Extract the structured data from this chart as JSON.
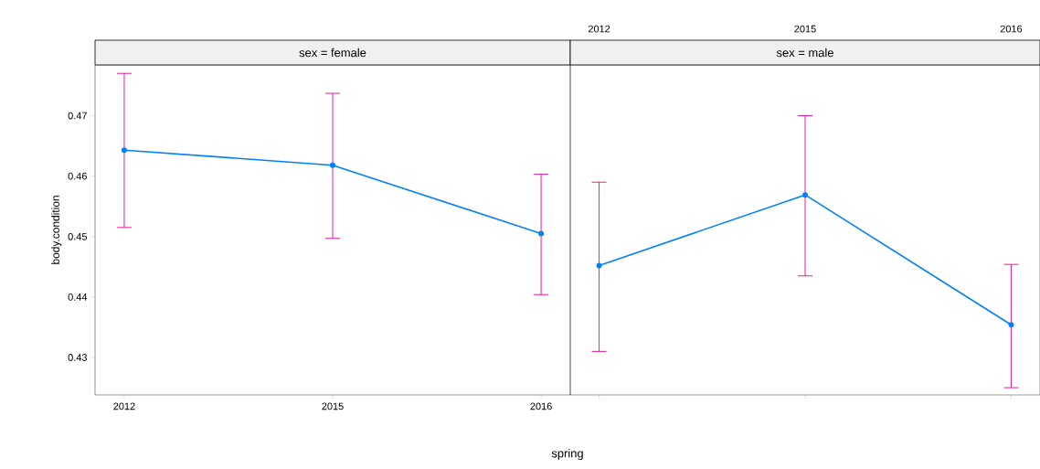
{
  "chart_data": [
    {
      "type": "line",
      "title": "sex = female",
      "xlabel": "spring",
      "ylabel": "body.condition",
      "categories": [
        "2012",
        "2015",
        "2016"
      ],
      "series": [
        {
          "color": "#0080ff",
          "values": [
            0.4643,
            0.4618,
            0.4505
          ],
          "errors": [
            [
              0.4515,
              0.477
            ],
            [
              0.4497,
              0.4737
            ],
            [
              0.4404,
              0.4603
            ]
          ]
        }
      ],
      "ylim": [
        0.4238,
        0.4784
      ],
      "yticks": [
        0.43,
        0.44,
        0.45,
        0.46,
        0.47
      ],
      "marker": "circle",
      "line_style": "solid"
    },
    {
      "type": "line",
      "title": "sex = male",
      "categories": [
        "2012",
        "2015",
        "2016"
      ],
      "series": [
        {
          "color": "#0080ff",
          "values": [
            0.4452,
            0.4569,
            0.4354
          ],
          "errors": [
            [
              0.431,
              0.459
            ],
            [
              0.4435,
              0.47
            ],
            [
              0.425,
              0.4454
            ]
          ]
        }
      ],
      "ylim": [
        0.4238,
        0.4784
      ],
      "yticks": [
        0.43,
        0.44,
        0.45,
        0.46,
        0.47
      ],
      "marker": "circle",
      "line_style": "solid",
      "tick_labels": "x"
    }
  ]
}
